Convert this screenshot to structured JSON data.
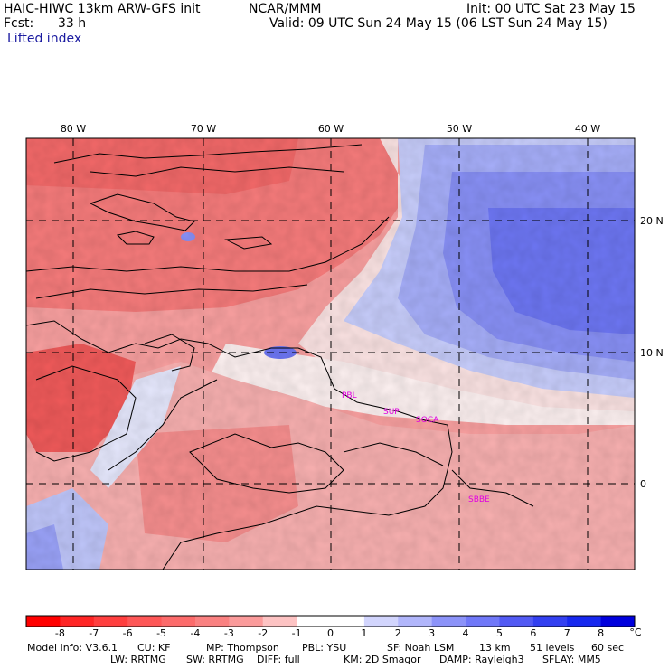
{
  "header": {
    "model": "HAIC-HIWC 13km ARW-GFS init",
    "org": "NCAR/MMM",
    "init": "Init: 00 UTC Sat 23 May 15",
    "fcst_label": "Fcst:",
    "fcst_value": "33 h",
    "valid": "Valid: 09 UTC Sun 24 May 15 (06 LST Sun 24 May 15)",
    "field": "Lifted index"
  },
  "map": {
    "lon_labels": [
      "80 W",
      "70 W",
      "60 W",
      "50 W",
      "40 W"
    ],
    "lat_labels": [
      "20 N",
      "10 N",
      "0"
    ],
    "stations": [
      "PBL",
      "SUP",
      "SOCA",
      "SBBE"
    ],
    "station_color": "#e000e0"
  },
  "colorbar": {
    "unit": "°C",
    "labels": [
      "-8",
      "-7",
      "-6",
      "-5",
      "-4",
      "-3",
      "-2",
      "-1",
      "0",
      "1",
      "2",
      "3",
      "4",
      "5",
      "6",
      "7",
      "8"
    ],
    "colors": [
      "#ff0000",
      "#ff2525",
      "#ff3f3f",
      "#fe5757",
      "#fc6b6b",
      "#fa8181",
      "#fb9b9b",
      "#fdc3c3",
      "#ffffff",
      "#ffffff",
      "#d2d5fd",
      "#b1b6fb",
      "#8c93f9",
      "#7078f8",
      "#525af4",
      "#3340f1",
      "#1728ef",
      "#0000dd"
    ]
  },
  "model_info": {
    "line1": [
      "Model Info: V3.6.1",
      "CU: KF",
      "MP: Thompson",
      "PBL: YSU",
      "SF: Noah LSM",
      "13 km",
      "51 levels",
      "60 sec"
    ],
    "line2": [
      "LW: RRTMG",
      "SW: RRTMG",
      "DIFF: full",
      "KM: 2D Smagor",
      "DAMP: Rayleigh3",
      "SFLAY: MM5"
    ]
  }
}
